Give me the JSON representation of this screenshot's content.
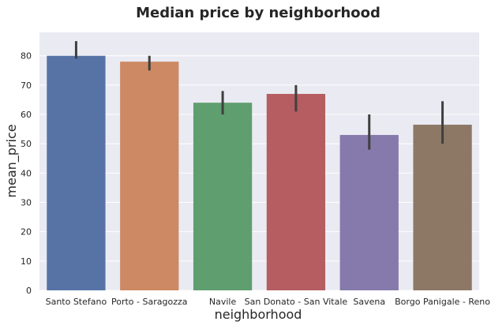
{
  "chart_data": {
    "type": "bar",
    "title": "Median price by neighborhood",
    "xlabel": "neighborhood",
    "ylabel": "mean_price",
    "categories": [
      "Santo Stefano",
      "Porto - Saragozza",
      "Navile",
      "San Donato - San Vitale",
      "Savena",
      "Borgo Panigale - Reno"
    ],
    "values": [
      80,
      78,
      64,
      67,
      53,
      56.5
    ],
    "error_low": [
      79,
      75,
      60,
      61,
      48,
      50
    ],
    "error_high": [
      85,
      80,
      68,
      70,
      60,
      64.5
    ],
    "ylim": [
      0,
      88
    ],
    "yticks": [
      0,
      10,
      20,
      30,
      40,
      50,
      60,
      70,
      80
    ],
    "grid": true,
    "legend": "none",
    "colors": [
      "#5773a6",
      "#cc8963",
      "#5f9e6e",
      "#b55d60",
      "#857aab",
      "#8d7866"
    ],
    "background_color": "#eaeaf2",
    "errorbar_color": "#3f3f3f"
  }
}
